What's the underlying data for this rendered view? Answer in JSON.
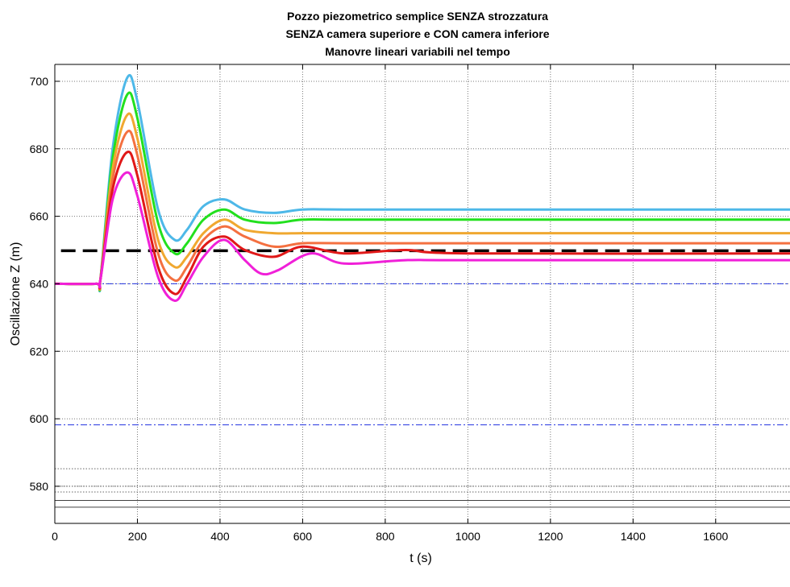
{
  "chart_data": {
    "type": "line",
    "title": [
      "Pozzo piezometrico semplice SENZA strozzatura",
      "SENZA camera superiore e CON camera inferiore",
      "Manovre lineari variabili nel tempo"
    ],
    "xlabel": "t (s)",
    "ylabel": "Oscillazione Z (m)",
    "xlim": [
      0,
      1780
    ],
    "ylim": [
      569,
      705
    ],
    "xticks": [
      0,
      200,
      400,
      600,
      800,
      1000,
      1200,
      1400,
      1600
    ],
    "yticks": [
      580,
      600,
      620,
      640,
      660,
      680,
      700
    ],
    "grid": true,
    "legend": "none",
    "colors": {
      "cyan": "#4db8e8",
      "green": "#22e01e",
      "gold": "#f0a830",
      "orange": "#f47040",
      "red": "#e01818",
      "magenta": "#f020d8",
      "dashed_black": "#000000",
      "blue_dashdot": "#2030e0",
      "gray_dotted": "#666666",
      "gray_solid": "#404040"
    },
    "series": [
      {
        "color": "#4db8e8",
        "x": [
          0,
          100,
          110,
          140,
          175,
          200,
          250,
          290,
          320,
          360,
          410,
          460,
          530,
          600,
          700,
          1000,
          1780
        ],
        "y": [
          640,
          640,
          641,
          680,
          701,
          694,
          662,
          653,
          656,
          663,
          665,
          662,
          661,
          662,
          662,
          662,
          662
        ]
      },
      {
        "color": "#22e01e",
        "x": [
          0,
          100,
          110,
          140,
          175,
          200,
          250,
          290,
          320,
          360,
          410,
          460,
          530,
          600,
          700,
          1000,
          1780
        ],
        "y": [
          640,
          640,
          641,
          677,
          696,
          689,
          658,
          649,
          652,
          659,
          662,
          659,
          658,
          659,
          659,
          659,
          659
        ]
      },
      {
        "color": "#f0a830",
        "x": [
          0,
          100,
          110,
          140,
          175,
          200,
          250,
          290,
          320,
          360,
          410,
          460,
          530,
          600,
          700,
          1000,
          1780
        ],
        "y": [
          640,
          640,
          641,
          674,
          690,
          683,
          653,
          645,
          648,
          655,
          659,
          656,
          655,
          655,
          655,
          655,
          655
        ]
      },
      {
        "color": "#f47040",
        "x": [
          0,
          100,
          110,
          140,
          175,
          200,
          250,
          290,
          320,
          360,
          410,
          460,
          530,
          600,
          700,
          1000,
          1780
        ],
        "y": [
          640,
          640,
          641,
          671,
          685,
          678,
          649,
          641,
          645,
          653,
          657,
          654,
          651,
          652,
          652,
          652,
          652
        ]
      },
      {
        "color": "#e01818",
        "x": [
          0,
          100,
          110,
          140,
          175,
          200,
          250,
          290,
          320,
          360,
          410,
          460,
          530,
          600,
          700,
          850,
          1000,
          1780
        ],
        "y": [
          640,
          640,
          641,
          668,
          679,
          672,
          645,
          637,
          642,
          651,
          654,
          650,
          648,
          651,
          649,
          650,
          649,
          649
        ]
      },
      {
        "color": "#f020d8",
        "x": [
          0,
          100,
          110,
          140,
          175,
          200,
          250,
          290,
          320,
          360,
          410,
          460,
          500,
          540,
          620,
          700,
          850,
          1000,
          1780
        ],
        "y": [
          640,
          640,
          641,
          665,
          673,
          666,
          642,
          635,
          640,
          648,
          653,
          647,
          643,
          644,
          649,
          646,
          647,
          647,
          647
        ]
      }
    ],
    "reference_lines": [
      {
        "style": "dashed",
        "color": "#000000",
        "y": 649.8,
        "from": 15
      },
      {
        "style": "dashdot",
        "color": "#2030e0",
        "y": 640.0
      },
      {
        "style": "dashdot",
        "color": "#2030e0",
        "y": 598.2
      },
      {
        "style": "dotted",
        "color": "#666666",
        "y": 585.2
      },
      {
        "style": "dotted",
        "color": "#666666",
        "y": 580.0
      },
      {
        "style": "dotted",
        "color": "#666666",
        "y": 578.3
      },
      {
        "style": "solid",
        "color": "#404040",
        "y": 575.8
      },
      {
        "style": "solid",
        "color": "#404040",
        "y": 573.8
      }
    ]
  }
}
